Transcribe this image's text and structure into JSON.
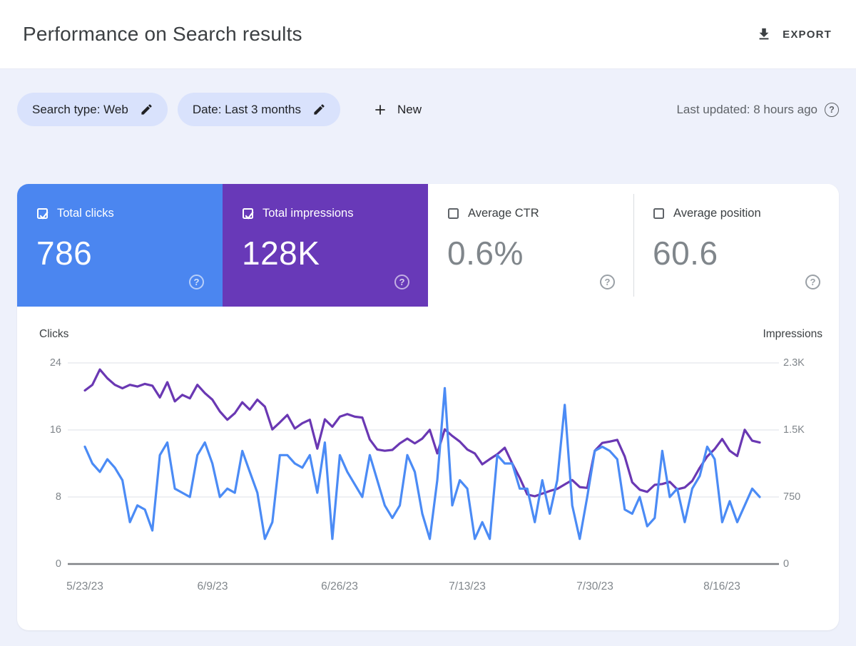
{
  "header": {
    "title": "Performance on Search results",
    "export_label": "EXPORT"
  },
  "filters": {
    "search_type_chip": "Search type: Web",
    "date_chip": "Date: Last 3 months",
    "new_button": "New",
    "last_updated": "Last updated: 8 hours ago",
    "help_glyph": "?"
  },
  "colors": {
    "clicks_blue": "#4b86f0",
    "impressions_purple": "#6839b8",
    "page_background": "#eef1fb",
    "chip_background": "#d9e2fc"
  },
  "metrics": {
    "cards": [
      {
        "id": "total-clicks",
        "label": "Total clicks",
        "value": "786",
        "checked": true,
        "color": "#4b86f0",
        "help_glyph": "?"
      },
      {
        "id": "total-impressions",
        "label": "Total impressions",
        "value": "128K",
        "checked": true,
        "color": "#6839b8",
        "help_glyph": "?"
      },
      {
        "id": "average-ctr",
        "label": "Average CTR",
        "value": "0.6%",
        "checked": false,
        "help_glyph": "?"
      },
      {
        "id": "average-position",
        "label": "Average position",
        "value": "60.6",
        "checked": false,
        "help_glyph": "?"
      }
    ]
  },
  "chart_data": {
    "type": "line",
    "x_tick_labels": [
      "5/23/23",
      "6/9/23",
      "6/26/23",
      "7/13/23",
      "7/30/23",
      "8/16/23"
    ],
    "x_tick_indices": [
      0,
      17,
      34,
      51,
      68,
      85
    ],
    "left_axis": {
      "label": "Clicks",
      "ticks": [
        "24",
        "16",
        "8",
        "0"
      ],
      "max": 24
    },
    "right_axis": {
      "label": "Impressions",
      "ticks": [
        "2.3K",
        "1.5K",
        "750",
        "0"
      ],
      "max": 2300
    },
    "grid": true,
    "legend": "none",
    "series": [
      {
        "name": "Clicks",
        "id": "clicks",
        "axis": "left",
        "color": "#4b8bf5",
        "values": [
          14,
          12,
          11,
          12.5,
          11.5,
          10,
          5,
          7,
          6.5,
          4,
          13,
          14.5,
          9,
          8.5,
          8,
          13,
          14.5,
          12,
          8,
          9,
          8.5,
          13.5,
          11,
          8.5,
          3,
          5,
          13,
          13,
          12,
          11.5,
          13,
          8.5,
          14.5,
          3,
          13,
          11,
          9.5,
          8,
          13,
          10,
          7,
          5.5,
          7,
          13,
          11,
          6,
          3,
          10,
          21,
          7,
          10,
          9,
          3,
          5,
          3,
          13,
          12,
          12,
          9,
          9,
          5,
          10,
          6,
          10,
          19,
          7,
          3,
          8,
          13.5,
          14,
          13.5,
          12.5,
          6.5,
          6,
          8,
          4.5,
          5.5,
          13.5,
          8,
          9,
          5,
          9,
          10.5,
          14,
          12.5,
          5,
          7.5,
          5,
          7,
          9,
          8
        ]
      },
      {
        "name": "Impressions",
        "id": "impressions",
        "axis": "right",
        "color": "#6a38b3",
        "values": [
          1985,
          2050,
          2225,
          2125,
          2050,
          2010,
          2050,
          2030,
          2060,
          2040,
          1905,
          2080,
          1860,
          1935,
          1895,
          2050,
          1955,
          1880,
          1745,
          1650,
          1725,
          1850,
          1765,
          1880,
          1800,
          1540,
          1620,
          1705,
          1550,
          1610,
          1650,
          1320,
          1655,
          1570,
          1685,
          1715,
          1685,
          1675,
          1425,
          1310,
          1295,
          1305,
          1380,
          1435,
          1380,
          1435,
          1535,
          1265,
          1540,
          1465,
          1400,
          1310,
          1265,
          1140,
          1200,
          1255,
          1330,
          1150,
          985,
          795,
          775,
          805,
          835,
          860,
          910,
          960,
          880,
          870,
          1295,
          1385,
          1400,
          1420,
          1230,
          935,
          850,
          825,
          905,
          915,
          940,
          855,
          875,
          950,
          1100,
          1230,
          1315,
          1430,
          1295,
          1235,
          1535,
          1410,
          1390
        ]
      }
    ]
  }
}
